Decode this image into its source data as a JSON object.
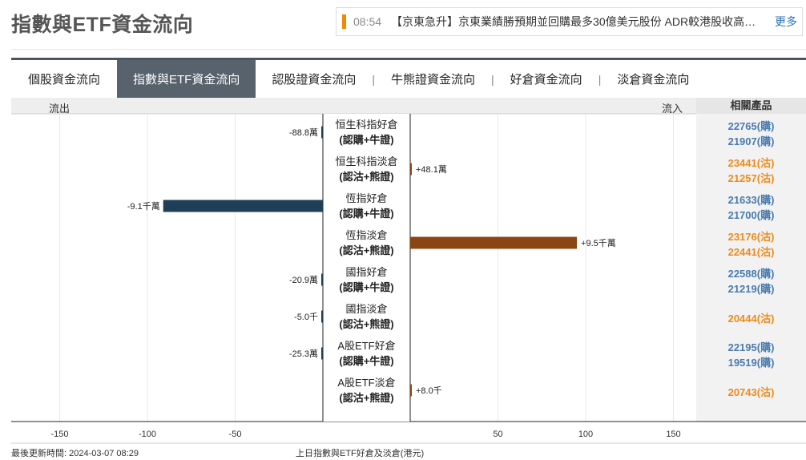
{
  "page_title": "指數與ETF資金流向",
  "news": {
    "time": "08:54",
    "text": "【京東急升】京東業績勝預期並回購最多30億美元股份 ADR較港股收高約19%",
    "more_label": "更多"
  },
  "tabs": [
    {
      "label": "個股資金流向",
      "active": false
    },
    {
      "label": "指數與ETF資金流向",
      "active": true
    },
    {
      "label": "認股證資金流向",
      "active": false
    },
    {
      "label": "牛熊證資金流向",
      "active": false
    },
    {
      "label": "好倉資金流向",
      "active": false
    },
    {
      "label": "淡倉資金流向",
      "active": false
    }
  ],
  "tab_separator": "|",
  "headers": {
    "outflow": "流出",
    "inflow": "流入",
    "products": "相關產品"
  },
  "chart_data": {
    "type": "bar",
    "orientation": "horizontal",
    "unit_note": "上日指數與ETF好倉及淡倉(港元)",
    "xlim": [
      -150,
      150
    ],
    "ticks": [
      -150,
      -100,
      -50,
      50,
      100,
      150
    ],
    "tick_labels": [
      "-150",
      "-100",
      "-50",
      "50",
      "100",
      "150"
    ],
    "grid": true,
    "categories": [
      {
        "name": "恒生科指好倉",
        "sub": "(認購+牛證)",
        "value": -0.888,
        "label": "-88.8萬",
        "direction": "out",
        "products": [
          {
            "code": "22765(購)",
            "type": "buy"
          },
          {
            "code": "21907(購)",
            "type": "buy"
          }
        ]
      },
      {
        "name": "恒生科指淡倉",
        "sub": "(認沽+熊證)",
        "value": 0.481,
        "label": "+48.1萬",
        "direction": "in",
        "products": [
          {
            "code": "23441(沽)",
            "type": "sell"
          },
          {
            "code": "21257(沽)",
            "type": "sell"
          }
        ]
      },
      {
        "name": "恆指好倉",
        "sub": "(認購+牛證)",
        "value": -91,
        "label": "-9.1千萬",
        "direction": "out",
        "products": [
          {
            "code": "21633(購)",
            "type": "buy"
          },
          {
            "code": "21700(購)",
            "type": "buy"
          }
        ]
      },
      {
        "name": "恆指淡倉",
        "sub": "(認沽+熊證)",
        "value": 95,
        "label": "+9.5千萬",
        "direction": "in",
        "products": [
          {
            "code": "23176(沽)",
            "type": "sell"
          },
          {
            "code": "22441(沽)",
            "type": "sell"
          }
        ]
      },
      {
        "name": "國指好倉",
        "sub": "(認購+牛證)",
        "value": -0.209,
        "label": "-20.9萬",
        "direction": "out",
        "products": [
          {
            "code": "22588(購)",
            "type": "buy"
          },
          {
            "code": "21219(購)",
            "type": "buy"
          }
        ]
      },
      {
        "name": "國指淡倉",
        "sub": "(認沽+熊證)",
        "value": -0.005,
        "label": "-5.0千",
        "direction": "out",
        "products": [
          {
            "code": "20444(沽)",
            "type": "sell"
          }
        ]
      },
      {
        "name": "A股ETF好倉",
        "sub": "(認購+牛證)",
        "value": -0.253,
        "label": "-25.3萬",
        "direction": "out",
        "products": [
          {
            "code": "22195(購)",
            "type": "buy"
          },
          {
            "code": "19519(購)",
            "type": "buy"
          }
        ]
      },
      {
        "name": "A股ETF淡倉",
        "sub": "(認沽+熊證)",
        "value": 0.008,
        "label": "+8.0千",
        "direction": "in",
        "products": [
          {
            "code": "20743(沽)",
            "type": "sell"
          }
        ]
      }
    ],
    "colors": {
      "outflow": "#1f3e57",
      "inflow": "#8b4513",
      "grid": "#e8e8e8",
      "axis": "#222222"
    }
  },
  "footer": {
    "updated": "最後更新時間: 2024-03-07 08:29"
  }
}
